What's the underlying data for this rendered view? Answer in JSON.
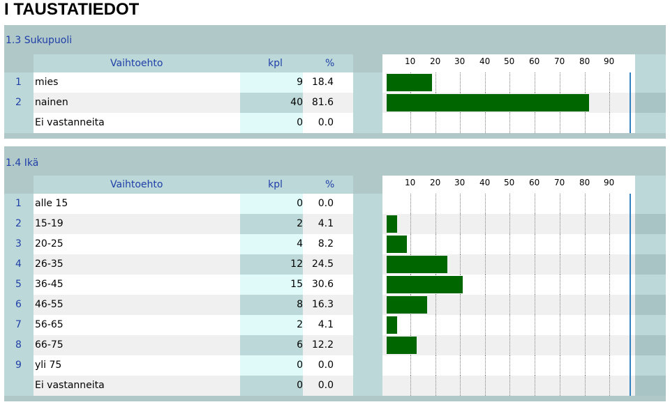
{
  "page_title": "I TAUSTATIEDOT",
  "columns": {
    "option": "Vaihtoehto",
    "count": "kpl",
    "percent": "%"
  },
  "scale_ticks": [
    "10",
    "20",
    "30",
    "40",
    "50",
    "60",
    "70",
    "80",
    "90"
  ],
  "colors": {
    "bar": "#006600",
    "header_text": "#1f3fa8",
    "section_bg": "#b0c8c8"
  },
  "sections": [
    {
      "title": "1.3 Sukupuoli",
      "rows": [
        {
          "num": "1",
          "label": "mies",
          "count": "9",
          "percent": "18.4",
          "value": 18.4
        },
        {
          "num": "2",
          "label": "nainen",
          "count": "40",
          "percent": "81.6",
          "value": 81.6
        },
        {
          "num": "",
          "label": "Ei vastanneita",
          "count": "0",
          "percent": "0.0",
          "value": 0
        }
      ]
    },
    {
      "title": "1.4 Ikä",
      "rows": [
        {
          "num": "1",
          "label": "alle 15",
          "count": "0",
          "percent": "0.0",
          "value": 0
        },
        {
          "num": "2",
          "label": "15-19",
          "count": "2",
          "percent": "4.1",
          "value": 4.1
        },
        {
          "num": "3",
          "label": "20-25",
          "count": "4",
          "percent": "8.2",
          "value": 8.2
        },
        {
          "num": "4",
          "label": "26-35",
          "count": "12",
          "percent": "24.5",
          "value": 24.5
        },
        {
          "num": "5",
          "label": "36-45",
          "count": "15",
          "percent": "30.6",
          "value": 30.6
        },
        {
          "num": "6",
          "label": "46-55",
          "count": "8",
          "percent": "16.3",
          "value": 16.3
        },
        {
          "num": "7",
          "label": "56-65",
          "count": "2",
          "percent": "4.1",
          "value": 4.1
        },
        {
          "num": "8",
          "label": "66-75",
          "count": "6",
          "percent": "12.2",
          "value": 12.2
        },
        {
          "num": "9",
          "label": "yli 75",
          "count": "0",
          "percent": "0.0",
          "value": 0
        },
        {
          "num": "",
          "label": "Ei vastanneita",
          "count": "0",
          "percent": "0.0",
          "value": 0
        }
      ]
    }
  ]
}
